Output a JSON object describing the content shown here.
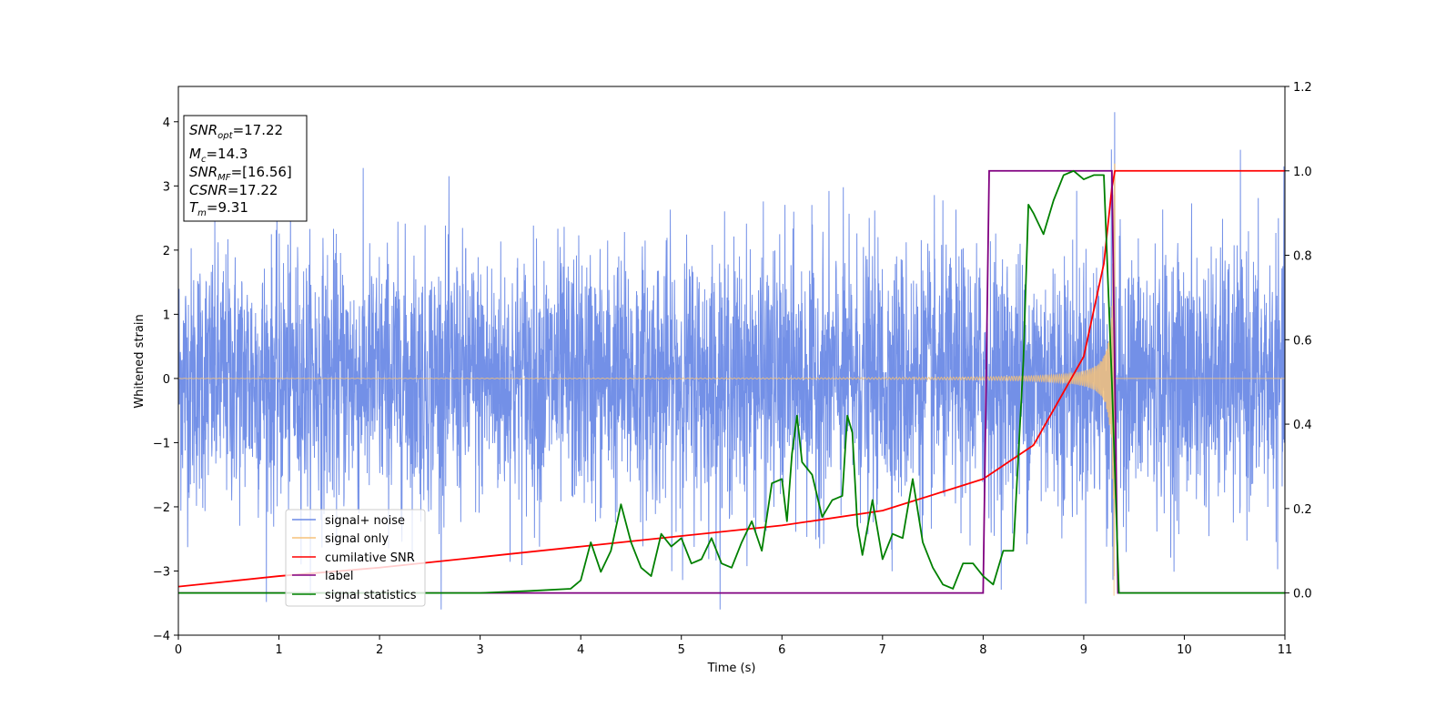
{
  "chart_data": {
    "type": "line",
    "xlabel": "Time (s)",
    "ylabel_left": "Whitened strain",
    "xlim": [
      0,
      11
    ],
    "ylim_left": [
      -4,
      4.55
    ],
    "ylim_right": [
      -0.1,
      1.2
    ],
    "xticks": [
      0,
      1,
      2,
      3,
      4,
      5,
      6,
      7,
      8,
      9,
      10,
      11
    ],
    "yticks_left": [
      -4,
      -3,
      -2,
      -1,
      0,
      1,
      2,
      3,
      4
    ],
    "yticks_right": [
      "0.0",
      "0.2",
      "0.4",
      "0.6",
      "0.8",
      "1.0",
      "1.2"
    ],
    "grid": false,
    "legend_position": "lower-left",
    "info_box": {
      "snr_opt": "=17.22",
      "mc": "=14.3",
      "snr_mf": "=[16.56]",
      "csnr": "=17.22",
      "tm": "=9.31"
    },
    "series": [
      {
        "name": "signal+ noise",
        "axis": "left",
        "color": "#6b8ae6",
        "style": "noise",
        "std": 1.0,
        "y_range_approx": [
          -3.6,
          4.15
        ]
      },
      {
        "name": "signal only",
        "axis": "left",
        "color": "#f5c27a",
        "style": "chirp",
        "merger_time": 9.31,
        "peak_amplitude": 3.4
      },
      {
        "name": "cumilative SNR",
        "axis": "right",
        "color": "#ff0000",
        "x": [
          0,
          1,
          2,
          3,
          4,
          5,
          6,
          7,
          8,
          8.5,
          9,
          9.2,
          9.28,
          9.31,
          11
        ],
        "y": [
          0.015,
          0.04,
          0.06,
          0.085,
          0.11,
          0.135,
          0.16,
          0.195,
          0.27,
          0.35,
          0.56,
          0.78,
          0.96,
          1.0,
          1.0
        ]
      },
      {
        "name": "label",
        "axis": "right",
        "color": "#800080",
        "x": [
          0,
          8.0,
          8.06,
          9.28,
          9.34,
          11
        ],
        "y": [
          0.0,
          0.0,
          1.0,
          1.0,
          0.0,
          0.0
        ]
      },
      {
        "name": "signal statistics",
        "axis": "right",
        "color": "#008000",
        "x": [
          0,
          1,
          2,
          3,
          3.5,
          3.9,
          4.0,
          4.1,
          4.2,
          4.3,
          4.4,
          4.5,
          4.6,
          4.7,
          4.8,
          4.9,
          5.0,
          5.1,
          5.2,
          5.3,
          5.4,
          5.5,
          5.6,
          5.7,
          5.8,
          5.9,
          6.0,
          6.05,
          6.1,
          6.15,
          6.2,
          6.3,
          6.4,
          6.5,
          6.6,
          6.65,
          6.7,
          6.75,
          6.8,
          6.9,
          7.0,
          7.1,
          7.2,
          7.3,
          7.4,
          7.5,
          7.6,
          7.7,
          7.8,
          7.9,
          8.0,
          8.1,
          8.2,
          8.3,
          8.4,
          8.45,
          8.5,
          8.6,
          8.7,
          8.8,
          8.9,
          9.0,
          9.1,
          9.2,
          9.28,
          9.35,
          9.4,
          11
        ],
        "y": [
          0.0,
          0.0,
          0.0,
          0.0,
          0.005,
          0.01,
          0.03,
          0.12,
          0.05,
          0.1,
          0.21,
          0.12,
          0.06,
          0.04,
          0.14,
          0.11,
          0.13,
          0.07,
          0.08,
          0.13,
          0.07,
          0.06,
          0.12,
          0.17,
          0.1,
          0.26,
          0.27,
          0.17,
          0.33,
          0.42,
          0.31,
          0.28,
          0.18,
          0.22,
          0.23,
          0.42,
          0.38,
          0.16,
          0.09,
          0.22,
          0.08,
          0.14,
          0.13,
          0.27,
          0.12,
          0.06,
          0.02,
          0.01,
          0.07,
          0.07,
          0.04,
          0.02,
          0.1,
          0.1,
          0.55,
          0.92,
          0.9,
          0.85,
          0.93,
          0.99,
          1.0,
          0.98,
          0.99,
          0.99,
          0.5,
          0.0,
          0.0,
          0.0
        ]
      }
    ]
  }
}
